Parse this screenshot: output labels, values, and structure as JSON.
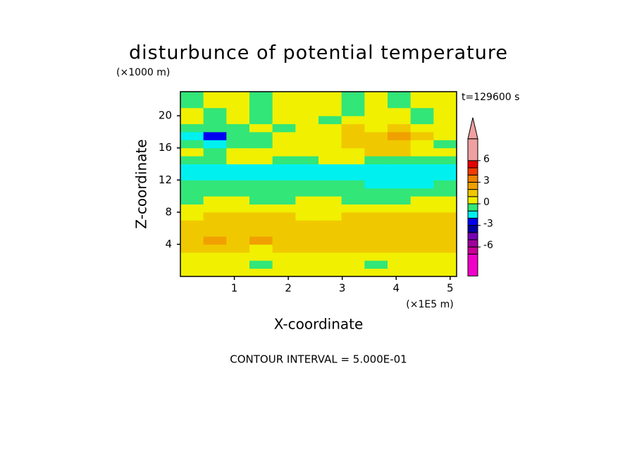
{
  "chart_data": {
    "type": "contour",
    "title": "disturbunce of potential temperature",
    "ylabel": "Z-coordinate",
    "yunit": "(×1000 m)",
    "xlabel": "X-coordinate",
    "xunit": "(×1E5 m)",
    "time_label": "t=129600 s",
    "footnote": "CONTOUR INTERVAL = 5.000E-01",
    "xlim": [
      0,
      5.12
    ],
    "ylim": [
      0,
      23
    ],
    "xticks": [
      1,
      2,
      3,
      4,
      5
    ],
    "yticks": [
      4,
      8,
      12,
      16,
      20
    ],
    "z": [
      [
        0.5,
        0.5,
        0.5,
        0.5,
        0.5,
        0.5,
        0.5,
        0.5,
        0.5,
        0.5,
        0.5,
        0.5
      ],
      [
        0.5,
        0.5,
        0.5,
        -0.5,
        0.5,
        0.5,
        0.5,
        0.5,
        -0.5,
        0.5,
        0.5,
        0.5
      ],
      [
        0.5,
        0.5,
        0.5,
        0.5,
        0.5,
        0.5,
        0.5,
        0.5,
        0.5,
        0.5,
        0.5,
        0.5
      ],
      [
        1.5,
        1.5,
        1.5,
        0.5,
        1.5,
        1.5,
        1.5,
        1.5,
        1.5,
        1.5,
        1.5,
        1.5
      ],
      [
        1.5,
        2.5,
        1.5,
        2.5,
        1.5,
        1.5,
        1.5,
        1.5,
        1.5,
        1.5,
        1.5,
        1.5
      ],
      [
        1.5,
        1.5,
        1.5,
        1.5,
        1.5,
        1.5,
        1.5,
        1.5,
        1.5,
        1.5,
        1.5,
        1.5
      ],
      [
        1.5,
        1.5,
        1.5,
        1.5,
        1.5,
        1.5,
        1.5,
        1.5,
        1.5,
        1.5,
        1.5,
        1.5
      ],
      [
        0.5,
        1.5,
        1.5,
        1.5,
        1.5,
        0.5,
        0.5,
        1.5,
        1.5,
        1.5,
        1.5,
        1.5
      ],
      [
        0.5,
        0.5,
        0.5,
        0.5,
        0.5,
        0.5,
        0.5,
        0.5,
        0.5,
        0.5,
        0.5,
        0.5
      ],
      [
        -0.5,
        0.5,
        0.5,
        -0.5,
        -0.5,
        0.5,
        0.5,
        -0.5,
        -0.5,
        -0.5,
        0.5,
        0.5
      ],
      [
        -0.5,
        -0.5,
        -0.5,
        -0.5,
        -0.5,
        -0.5,
        -0.5,
        -0.5,
        -0.5,
        -0.5,
        -0.5,
        -0.5
      ],
      [
        -0.5,
        -0.5,
        -0.5,
        -0.5,
        -0.5,
        -0.5,
        -0.5,
        -0.5,
        -1.5,
        -1.5,
        -1.5,
        -0.5
      ],
      [
        -1.5,
        -1.5,
        -1.5,
        -1.5,
        -1.5,
        -1.5,
        -1.5,
        -1.5,
        -1.5,
        -1.5,
        -1.5,
        -1.5
      ],
      [
        -1.5,
        -1.5,
        -1.5,
        -1.5,
        -1.5,
        -1.5,
        -1.5,
        -1.5,
        -1.5,
        -1.5,
        -1.5,
        -1.5
      ],
      [
        -0.5,
        -0.5,
        0.5,
        0.5,
        -0.5,
        -0.5,
        0.5,
        0.5,
        -0.5,
        -0.5,
        -0.5,
        -0.5
      ],
      [
        0.5,
        -0.5,
        0.5,
        0.5,
        0.5,
        0.5,
        0.5,
        0.5,
        1.5,
        1.5,
        0.5,
        0.5
      ],
      [
        -0.5,
        -1.5,
        -0.5,
        -0.5,
        0.5,
        0.5,
        0.5,
        1.5,
        1.5,
        1.5,
        0.5,
        -0.5
      ],
      [
        -1.5,
        -2.5,
        -0.5,
        -0.5,
        0.5,
        0.5,
        0.5,
        1.5,
        1.5,
        2.5,
        1.5,
        0.5
      ],
      [
        -0.5,
        -0.5,
        -0.5,
        0.5,
        -0.5,
        0.5,
        0.5,
        1.5,
        0.5,
        1.5,
        0.5,
        0.5
      ],
      [
        0.5,
        -0.5,
        0.5,
        -0.5,
        0.5,
        0.5,
        -0.5,
        0.5,
        0.5,
        0.5,
        -0.5,
        0.5
      ],
      [
        0.5,
        -0.5,
        0.5,
        -0.5,
        0.5,
        0.5,
        0.5,
        -0.5,
        0.5,
        0.5,
        -0.5,
        0.5
      ],
      [
        -0.5,
        0.5,
        0.5,
        -0.5,
        0.5,
        0.5,
        0.5,
        -0.5,
        0.5,
        -0.5,
        0.5,
        0.5
      ],
      [
        -0.5,
        0.5,
        0.5,
        -0.5,
        0.5,
        0.5,
        0.5,
        -0.5,
        0.5,
        -0.5,
        0.5,
        0.5
      ]
    ],
    "colorbar": {
      "levels": [
        -7,
        -6,
        -5,
        -4,
        -3,
        -2,
        -1,
        0,
        1,
        2,
        3,
        4,
        5,
        6
      ],
      "colors": [
        "#f000c8",
        "#c80096",
        "#a0009c",
        "#7800b4",
        "#0000a0",
        "#0000f0",
        "#00f0f0",
        "#32e678",
        "#f0f000",
        "#f0c800",
        "#f0a000",
        "#f08200",
        "#f03c00",
        "#e60000",
        "#f0a0a0"
      ],
      "ticks": [
        -6,
        -3,
        0,
        3,
        6
      ]
    }
  }
}
